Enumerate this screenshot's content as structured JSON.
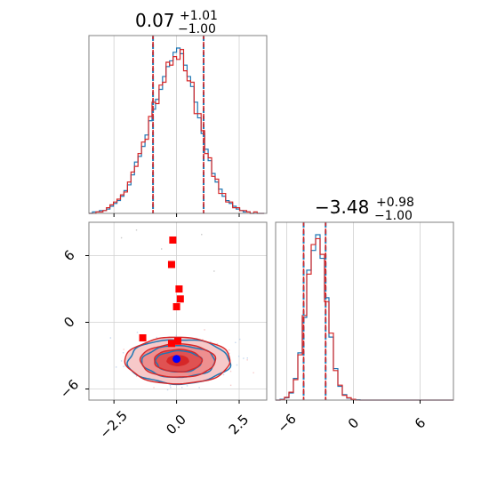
{
  "chart_data": [
    {
      "type": "histogram",
      "panel": "marginal-x",
      "title_value": "0.07",
      "title_plus": "+1.01",
      "title_minus": "−1.00",
      "xlim": [
        -3.5,
        3.6
      ],
      "bins": [
        -3.5,
        -3.36,
        -3.22,
        -3.08,
        -2.94,
        -2.8,
        -2.66,
        -2.52,
        -2.38,
        -2.24,
        -2.1,
        -1.96,
        -1.82,
        -1.68,
        -1.54,
        -1.4,
        -1.26,
        -1.12,
        -0.98,
        -0.84,
        -0.7,
        -0.56,
        -0.42,
        -0.28,
        -0.14,
        0,
        0.14,
        0.28,
        0.42,
        0.56,
        0.7,
        0.84,
        0.98,
        1.12,
        1.26,
        1.4,
        1.54,
        1.68,
        1.82,
        1.96,
        2.1,
        2.24,
        2.38,
        2.52,
        2.66,
        2.8,
        2.94,
        3.08,
        3.22,
        3.36,
        3.5
      ],
      "series": [
        {
          "color": "#1f77b4",
          "values": [
            0,
            1,
            1,
            2,
            2,
            3,
            5,
            7,
            9,
            12,
            16,
            20,
            27,
            36,
            40,
            47,
            55,
            65,
            73,
            80,
            87,
            96,
            103,
            107,
            113,
            116,
            112,
            104,
            96,
            89,
            78,
            67,
            56,
            45,
            37,
            28,
            22,
            17,
            12,
            9,
            7,
            5,
            3,
            2,
            1,
            1,
            0,
            0,
            0,
            0
          ]
        },
        {
          "color": "#d62728",
          "values": [
            0,
            0,
            1,
            1,
            2,
            4,
            6,
            8,
            10,
            13,
            15,
            22,
            29,
            33,
            42,
            50,
            52,
            68,
            78,
            77,
            90,
            92,
            106,
            104,
            110,
            108,
            115,
            100,
            93,
            92,
            70,
            70,
            58,
            42,
            39,
            26,
            24,
            14,
            14,
            8,
            8,
            4,
            4,
            2,
            2,
            1,
            0,
            1,
            0,
            0
          ]
        }
      ],
      "quantile_lines": [
        -0.94,
        0.07,
        1.08
      ],
      "xticks": [
        "−2.5",
        "0.0",
        "2.5"
      ]
    },
    {
      "type": "contour",
      "panel": "joint",
      "xlim": [
        -3.5,
        3.6
      ],
      "ylim": [
        -7,
        9
      ],
      "xticks": [
        "−2.5",
        "0.0",
        "2.5"
      ],
      "yticks": [
        "6",
        "0",
        "−6"
      ],
      "center": [
        0.05,
        -3.45
      ],
      "levels_sigma": {
        "x": [
          0.45,
          0.95,
          1.5,
          2.1
        ],
        "y": [
          0.5,
          1.0,
          1.5,
          2.1
        ]
      },
      "red_squares": [
        [
          -0.15,
          7.4
        ],
        [
          -0.2,
          5.2
        ],
        [
          0.1,
          3.0
        ],
        [
          0.15,
          2.1
        ],
        [
          0.0,
          1.4
        ],
        [
          -1.35,
          -1.4
        ],
        [
          -0.2,
          -1.9
        ],
        [
          0.05,
          -1.7
        ]
      ],
      "blue_point": [
        0.0,
        -3.3
      ]
    },
    {
      "type": "histogram",
      "panel": "marginal-y",
      "title_value": "−3.48",
      "title_plus": "+0.98",
      "title_minus": "−1.00",
      "xlim": [
        -7,
        9
      ],
      "bins": [
        -7,
        -6.6,
        -6.2,
        -5.8,
        -5.4,
        -5,
        -4.6,
        -4.2,
        -3.8,
        -3.4,
        -3,
        -2.6,
        -2.2,
        -1.8,
        -1.4,
        -1,
        -0.6,
        -0.2,
        0.2,
        0.6,
        1,
        1.4,
        1.8,
        2.2,
        2.6,
        3,
        3.4,
        3.8,
        4.2,
        4.6,
        5,
        5.4,
        5.8,
        6.2,
        6.6,
        7,
        7.4,
        7.8,
        8.2,
        8.6,
        9
      ],
      "series": [
        {
          "color": "#1f77b4",
          "values": [
            0,
            2,
            6,
            18,
            55,
            120,
            210,
            330,
            380,
            420,
            360,
            260,
            160,
            80,
            35,
            14,
            5,
            2,
            1,
            0,
            0,
            0,
            0,
            0,
            0,
            0,
            0,
            0,
            0,
            0,
            0,
            0,
            0,
            0,
            0,
            0,
            0,
            0,
            0,
            0
          ]
        },
        {
          "color": "#d62728",
          "values": [
            0,
            1,
            7,
            20,
            52,
            115,
            215,
            320,
            395,
            410,
            370,
            250,
            170,
            75,
            38,
            12,
            6,
            2,
            0,
            0,
            0,
            0,
            0,
            0,
            0,
            0,
            0,
            0,
            0,
            0,
            0,
            0,
            0,
            0,
            0,
            0,
            0,
            0,
            0,
            0
          ]
        }
      ],
      "quantile_lines": [
        -4.48,
        -3.48,
        -2.5
      ],
      "xticks": [
        "−6",
        "0",
        "6"
      ]
    }
  ]
}
